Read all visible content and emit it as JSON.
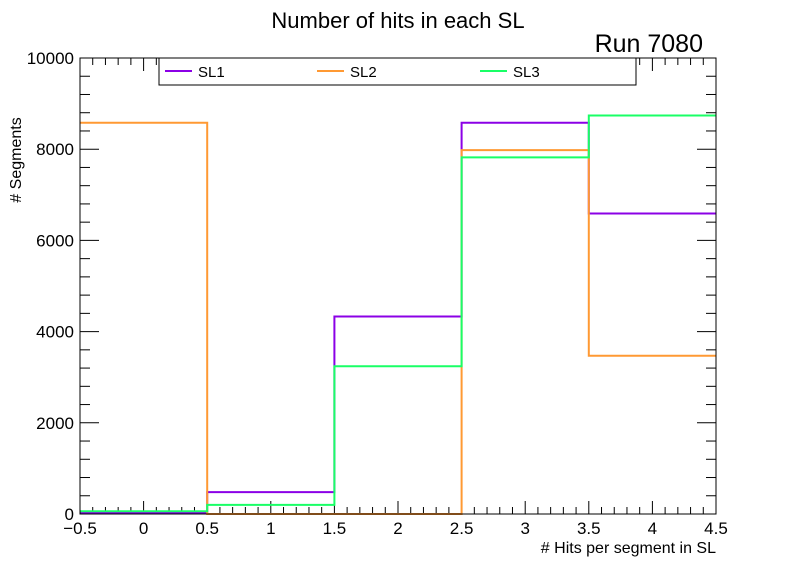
{
  "chart_data": {
    "type": "line",
    "style": "step-histogram",
    "title": "Number of hits in each SL",
    "annotation": "Run 7080",
    "xlabel": "# Hits per segment in SL",
    "ylabel": "# Segments",
    "xlim": [
      -0.5,
      4.5
    ],
    "ylim": [
      0,
      10000
    ],
    "x_ticks": [
      -0.5,
      0,
      0.5,
      1,
      1.5,
      2,
      2.5,
      3,
      3.5,
      4,
      4.5
    ],
    "x_tick_labels": [
      "−0.5",
      "0",
      "0.5",
      "1",
      "1.5",
      "2",
      "2.5",
      "3",
      "3.5",
      "4",
      "4.5"
    ],
    "y_ticks": [
      0,
      2000,
      4000,
      6000,
      8000,
      10000
    ],
    "y_tick_labels": [
      "0",
      "2000",
      "4000",
      "6000",
      "8000",
      "10000"
    ],
    "bin_edges": [
      -0.5,
      0.5,
      1.5,
      2.5,
      3.5,
      4.5
    ],
    "legend_position": "top",
    "series": [
      {
        "name": "SL1",
        "color": "#8b00e6",
        "values": [
          30,
          480,
          4330,
          8580,
          6590
        ]
      },
      {
        "name": "SL2",
        "color": "#ff9933",
        "values": [
          8580,
          0,
          0,
          7980,
          3470
        ]
      },
      {
        "name": "SL3",
        "color": "#19ff66",
        "values": [
          60,
          200,
          3240,
          7820,
          8740
        ]
      }
    ]
  }
}
